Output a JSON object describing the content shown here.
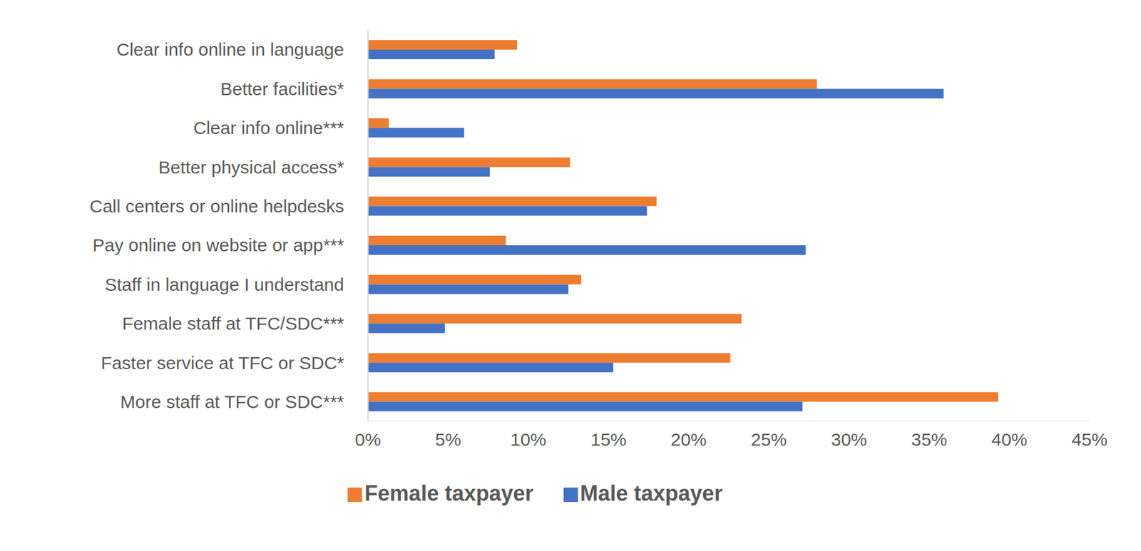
{
  "chart_data": {
    "type": "bar",
    "orientation": "horizontal",
    "categories": [
      "Clear info online in language",
      "Better facilities*",
      "Clear info online***",
      "Better physical access*",
      "Call centers or online helpdesks",
      "Pay online on website or app***",
      "Staff in language I understand",
      "Female staff at TFC/SDC***",
      "Faster service at TFC or SDC*",
      "More staff at TFC or SDC***"
    ],
    "series": [
      {
        "name": "Female taxpayer",
        "color": "#ed7d31",
        "values": [
          9.3,
          28.0,
          1.3,
          12.6,
          18.0,
          8.6,
          13.3,
          23.3,
          22.6,
          39.3
        ]
      },
      {
        "name": "Male taxpayer",
        "color": "#4472c4",
        "values": [
          7.9,
          35.9,
          6.0,
          7.6,
          17.4,
          27.3,
          12.5,
          4.8,
          15.3,
          27.1
        ]
      }
    ],
    "xlim": [
      0,
      45
    ],
    "xticks": [
      {
        "value": 0,
        "label": "0%"
      },
      {
        "value": 5,
        "label": "5%"
      },
      {
        "value": 10,
        "label": "10%"
      },
      {
        "value": 15,
        "label": "15%"
      },
      {
        "value": 20,
        "label": "20%"
      },
      {
        "value": 25,
        "label": "25%"
      },
      {
        "value": 30,
        "label": "30%"
      },
      {
        "value": 35,
        "label": "35%"
      },
      {
        "value": 40,
        "label": "40%"
      },
      {
        "value": 45,
        "label": "45%"
      }
    ],
    "grid": false,
    "legend": "bottom"
  }
}
